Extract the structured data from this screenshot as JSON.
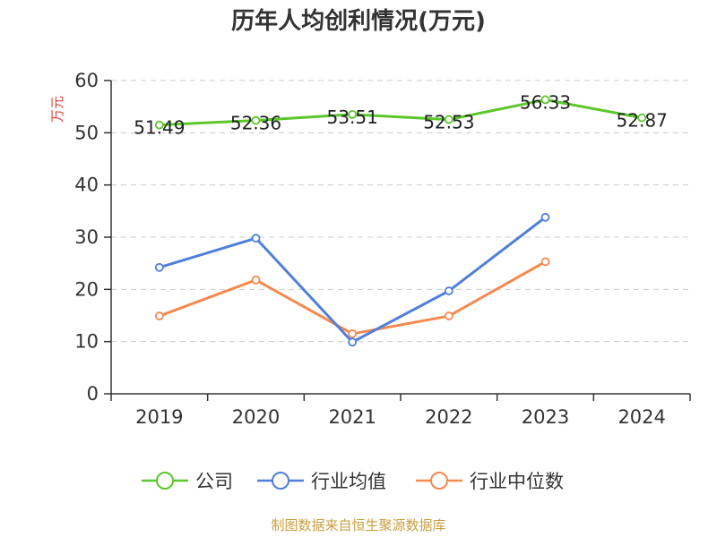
{
  "chart_data": {
    "type": "line",
    "title": "历年人均创利情况(万元)",
    "ylabel": "万元",
    "categories": [
      "2019",
      "2020",
      "2021",
      "2022",
      "2023",
      "2024"
    ],
    "ylim": [
      0,
      60
    ],
    "yticks": [
      0,
      10,
      20,
      30,
      40,
      50,
      60
    ],
    "grid": true,
    "legend_position": "bottom",
    "series": [
      {
        "name": "公司",
        "color": "#5cc62a",
        "values": [
          51.49,
          52.36,
          53.51,
          52.53,
          56.33,
          52.87
        ],
        "labels": [
          "51.49",
          "52.36",
          "53.51",
          "52.53",
          "56.33",
          "52.87"
        ]
      },
      {
        "name": "行业均值",
        "color": "#4f7fdb",
        "values": [
          24.2,
          29.8,
          9.9,
          19.7,
          33.8,
          null
        ]
      },
      {
        "name": "行业中位数",
        "color": "#f5894f",
        "values": [
          14.9,
          21.8,
          11.5,
          14.9,
          25.3,
          null
        ]
      }
    ]
  },
  "colors": {
    "axis": "#333333",
    "grid": "#cccccc",
    "ylabel": "#e0403a",
    "source": "#c9a040"
  },
  "source": "制图数据来自恒生聚源数据库"
}
